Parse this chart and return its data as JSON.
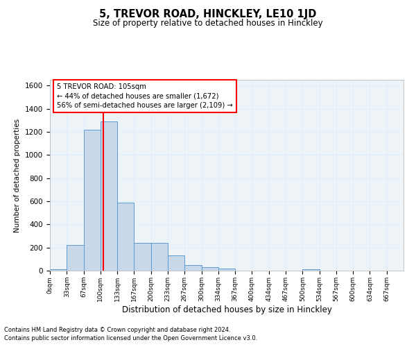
{
  "title": "5, TREVOR ROAD, HINCKLEY, LE10 1JD",
  "subtitle": "Size of property relative to detached houses in Hinckley",
  "xlabel": "Distribution of detached houses by size in Hinckley",
  "ylabel": "Number of detached properties",
  "footnote1": "Contains HM Land Registry data © Crown copyright and database right 2024.",
  "footnote2": "Contains public sector information licensed under the Open Government Licence v3.0.",
  "bin_labels": [
    "0sqm",
    "33sqm",
    "67sqm",
    "100sqm",
    "133sqm",
    "167sqm",
    "200sqm",
    "233sqm",
    "267sqm",
    "300sqm",
    "334sqm",
    "367sqm",
    "400sqm",
    "434sqm",
    "467sqm",
    "500sqm",
    "534sqm",
    "567sqm",
    "600sqm",
    "634sqm",
    "667sqm"
  ],
  "bar_values": [
    10,
    220,
    1220,
    1290,
    590,
    238,
    238,
    135,
    50,
    28,
    20,
    0,
    0,
    0,
    0,
    15,
    0,
    0,
    0,
    0,
    0
  ],
  "bar_color": "#c8d8e8",
  "bar_edge_color": "#5b9bd5",
  "grid_color": "#ddeeff",
  "bg_color": "#eef3f8",
  "red_line_x": 105,
  "annotation_text": "5 TREVOR ROAD: 105sqm\n← 44% of detached houses are smaller (1,672)\n56% of semi-detached houses are larger (2,109) →",
  "ylim": [
    0,
    1650
  ],
  "yticks": [
    0,
    200,
    400,
    600,
    800,
    1000,
    1200,
    1400,
    1600
  ],
  "bin_width": 33.0,
  "n_bins": 21
}
